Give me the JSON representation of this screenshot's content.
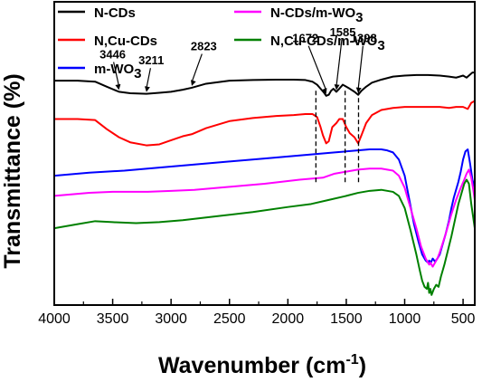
{
  "chart_data": {
    "type": "line",
    "title": "",
    "xlabel": "Wavenumber (cm",
    "xlabel_sup": "-1",
    "xlabel_close": ")",
    "ylabel": "Transmittance (%)",
    "xlim": [
      4000,
      400
    ],
    "x_reversed": true,
    "y_ticks_shown": false,
    "xticks": [
      4000,
      3500,
      3000,
      2500,
      2000,
      1500,
      1000,
      500
    ],
    "xtick_labels": [
      "4000",
      "3500",
      "3000",
      "2500",
      "2000",
      "1500",
      "1000",
      "500"
    ],
    "grid": false,
    "legend_placement": "top, inside",
    "series": [
      {
        "name": "N-CDs",
        "legend_main": "N-CDs",
        "legend_sub": "",
        "color": "#000000",
        "x": [
          4000,
          3800,
          3650,
          3550,
          3446,
          3350,
          3211,
          3100,
          3000,
          2900,
          2823,
          2700,
          2500,
          2300,
          2100,
          1950,
          1850,
          1790,
          1750,
          1720,
          1690,
          1672,
          1650,
          1630,
          1610,
          1585,
          1560,
          1530,
          1500,
          1470,
          1430,
          1398,
          1370,
          1330,
          1280,
          1200,
          1100,
          1000,
          900,
          800,
          700,
          620,
          560,
          500,
          470,
          440,
          420,
          400
        ],
        "y": [
          91,
          91,
          90.5,
          88,
          85.5,
          84.8,
          84.5,
          85,
          85.5,
          86.5,
          87.5,
          89.5,
          91,
          91.3,
          91.5,
          91.5,
          91.3,
          90.5,
          89,
          87,
          85,
          83.5,
          84,
          86,
          87,
          85.5,
          87,
          89,
          88,
          87,
          85.5,
          84,
          86,
          88,
          90,
          91.5,
          93,
          93.5,
          93.8,
          93.8,
          93.5,
          93,
          92.5,
          93.5,
          92.5,
          94,
          95,
          95
        ]
      },
      {
        "name": "N,Cu-CDs",
        "legend_main": "N,Cu-CDs",
        "legend_sub": "",
        "color": "#ff0000",
        "x": [
          4000,
          3800,
          3650,
          3550,
          3446,
          3350,
          3211,
          3100,
          3000,
          2900,
          2823,
          2700,
          2500,
          2300,
          2100,
          1950,
          1850,
          1790,
          1750,
          1720,
          1700,
          1672,
          1650,
          1620,
          1585,
          1560,
          1530,
          1500,
          1470,
          1430,
          1398,
          1370,
          1330,
          1280,
          1200,
          1100,
          1000,
          900,
          800,
          700,
          620,
          560,
          500,
          460,
          430,
          400
        ],
        "y": [
          72,
          72,
          71.5,
          67,
          63,
          60.5,
          59,
          59.5,
          61.5,
          63.5,
          64.5,
          67.5,
          71,
          72.5,
          73.5,
          74,
          74.5,
          74.5,
          73,
          68,
          64,
          60,
          61,
          68,
          70,
          72,
          72,
          68,
          65,
          63,
          60,
          64,
          70,
          74,
          76.5,
          77.5,
          78,
          78,
          78,
          78,
          77.5,
          78,
          78,
          77,
          80,
          81
        ]
      },
      {
        "name": "m-WO3",
        "legend_main": "m-WO",
        "legend_sub": "3",
        "color": "#0000ff",
        "x": [
          4000,
          3700,
          3400,
          3100,
          2800,
          2500,
          2200,
          1900,
          1600,
          1400,
          1300,
          1250,
          1200,
          1150,
          1100,
          1050,
          1000,
          960,
          920,
          880,
          850,
          820,
          800,
          790,
          780,
          760,
          740,
          720,
          700,
          680,
          650,
          620,
          600,
          580,
          560,
          540,
          520,
          500,
          480,
          460,
          440,
          420,
          400
        ],
        "y": [
          44,
          45.5,
          46.5,
          48,
          49.5,
          51,
          52.5,
          54,
          55.5,
          56.5,
          57,
          57,
          57,
          56.5,
          55.5,
          52,
          44,
          32,
          20,
          11,
          5,
          2,
          1,
          2,
          0.5,
          3,
          1.5,
          3,
          5,
          9,
          15,
          22,
          28,
          33,
          37,
          41,
          46,
          52,
          56,
          57,
          50,
          42,
          38
        ]
      },
      {
        "name": "N-CDs/m-WO3",
        "legend_main": "N-CDs/m-WO",
        "legend_sub": "3",
        "color": "#ff00ff",
        "x": [
          4000,
          3700,
          3500,
          3400,
          3200,
          3000,
          2800,
          2500,
          2200,
          1900,
          1700,
          1600,
          1500,
          1400,
          1300,
          1200,
          1100,
          1050,
          1000,
          950,
          900,
          860,
          820,
          800,
          790,
          780,
          760,
          740,
          720,
          700,
          650,
          600,
          560,
          520,
          490,
          470,
          450,
          430,
          410,
          400
        ],
        "y": [
          34,
          35.5,
          36,
          36,
          36,
          36.5,
          37,
          38.5,
          40,
          42,
          43,
          45,
          46,
          47,
          47.5,
          47.5,
          46.5,
          44,
          38,
          28,
          18,
          9,
          3,
          1,
          0,
          1,
          -1,
          1,
          3,
          6,
          15,
          25,
          32,
          38,
          42,
          45,
          47,
          43,
          36,
          32
        ]
      },
      {
        "name": "N,Cu-CDs/m-WO3",
        "legend_main": "N,Cu-CDs/m-WO",
        "legend_sub": "3",
        "color": "#008000",
        "x": [
          4000,
          3800,
          3650,
          3500,
          3300,
          3100,
          2900,
          2600,
          2300,
          2000,
          1800,
          1650,
          1500,
          1400,
          1300,
          1200,
          1100,
          1050,
          1000,
          950,
          900,
          870,
          850,
          830,
          810,
          800,
          790,
          780,
          770,
          750,
          730,
          710,
          690,
          660,
          630,
          600,
          570,
          540,
          510,
          490,
          470,
          450,
          430,
          410,
          400
        ],
        "y": [
          18,
          20,
          21.5,
          21,
          20.5,
          21,
          22,
          24,
          26,
          28.5,
          30,
          32,
          34,
          35.5,
          36.5,
          37,
          36,
          34,
          28,
          17,
          5,
          -3,
          -8,
          -11,
          -12,
          -9,
          -14,
          -12,
          -15,
          -12,
          -10,
          -11,
          -6,
          0,
          7,
          14,
          22,
          30,
          36,
          40,
          42,
          40,
          30,
          22,
          18
        ]
      }
    ],
    "annotations": [
      {
        "label": "3446",
        "x": 3446,
        "y_curve": 85.5,
        "text_x": 3500,
        "text_y": 102
      },
      {
        "label": "3211",
        "x": 3211,
        "y_curve": 84.5,
        "text_x": 3170,
        "text_y": 99
      },
      {
        "label": "2823",
        "x": 2823,
        "y_curve": 87.5,
        "text_x": 2720,
        "text_y": 106
      },
      {
        "label": "1672",
        "x": 1672,
        "y_curve": 83.5,
        "text_x": 1850,
        "text_y": 110
      },
      {
        "label": "1585",
        "x": 1585,
        "y_curve": 85.5,
        "text_x": 1530,
        "text_y": 113
      },
      {
        "label": "1398",
        "x": 1398,
        "y_curve": 84,
        "text_x": 1350,
        "text_y": 110
      }
    ],
    "dashed_lines_x": [
      1760,
      1510,
      1395
    ],
    "ylim": [
      -20,
      130
    ]
  }
}
